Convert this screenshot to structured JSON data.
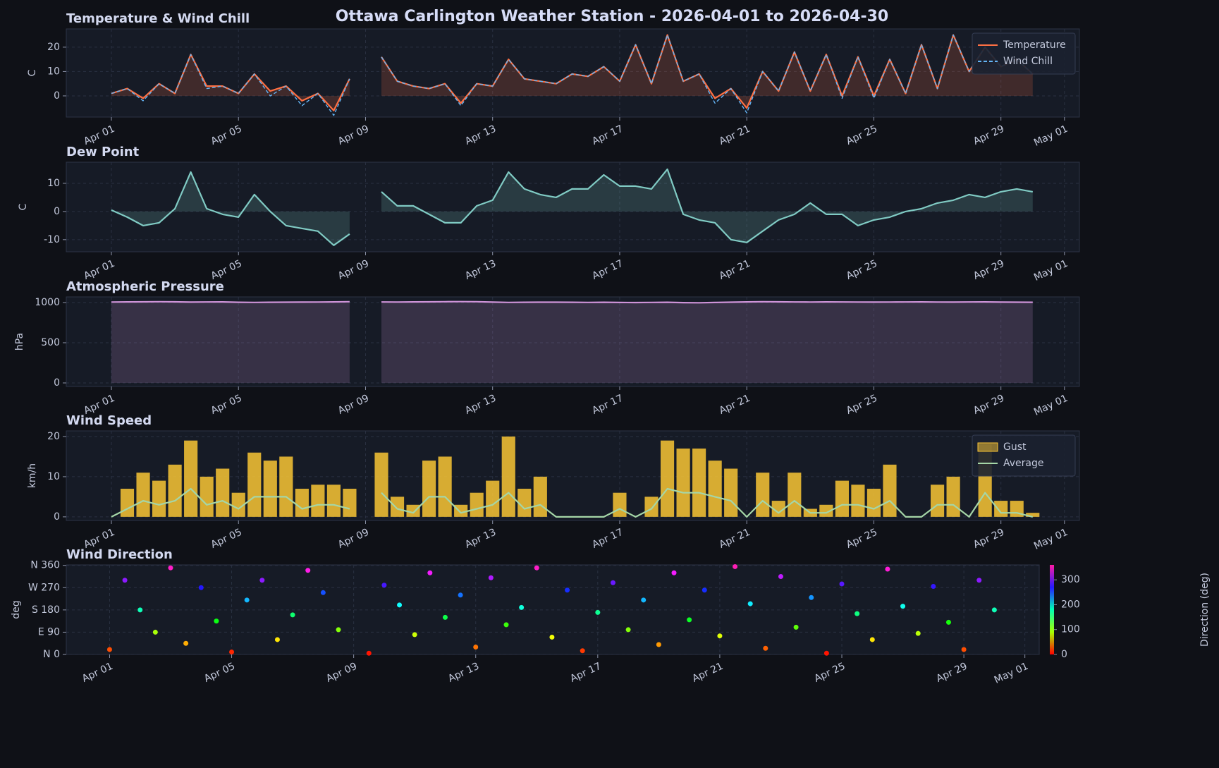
{
  "title": "Ottawa Carlington Weather Station  -  2026-04-01  to  2026-04-30",
  "chart_data": [
    {
      "type": "line",
      "title": "Temperature & Wind Chill",
      "ylabel": "C",
      "x": [
        0,
        0.5,
        1,
        1.5,
        2,
        2.5,
        3,
        3.5,
        4,
        4.5,
        5,
        5.5,
        6,
        6.5,
        7,
        7.5,
        8,
        8.5,
        9,
        9.5,
        10,
        10.5,
        11,
        11.5,
        12,
        12.5,
        13,
        13.5,
        14,
        14.5,
        15,
        15.5,
        16,
        16.5,
        17,
        17.5,
        18,
        18.5,
        19,
        19.5,
        20,
        20.5,
        21,
        21.5,
        22,
        22.5,
        23,
        23.5,
        24,
        24.5,
        25,
        25.5,
        26,
        26.5,
        27,
        27.5,
        28,
        28.5,
        29
      ],
      "series": [
        {
          "name": "Temperature",
          "color": "#ff7043",
          "fill": true,
          "values": [
            1,
            3,
            -1,
            5,
            1,
            17,
            4,
            4,
            1,
            9,
            2,
            4,
            -2,
            1,
            -6,
            7,
            null,
            16,
            6,
            4,
            3,
            5,
            -3,
            5,
            4,
            15,
            7,
            6,
            5,
            9,
            8,
            12,
            6,
            21,
            5,
            25,
            6,
            9,
            -1,
            3,
            -5,
            10,
            2,
            18,
            2,
            17,
            0,
            16,
            0,
            15,
            1,
            21,
            3,
            25,
            10,
            20,
            12,
            15,
            9
          ]
        },
        {
          "name": "Wind Chill",
          "color": "#64b5f6",
          "dash": true,
          "values": [
            1,
            3,
            -2,
            5,
            1,
            17,
            3,
            4,
            1,
            9,
            0,
            4,
            -4,
            1,
            -8,
            7,
            null,
            16,
            6,
            4,
            3,
            5,
            -4,
            5,
            4,
            15,
            7,
            6,
            5,
            9,
            8,
            12,
            6,
            21,
            5,
            25,
            6,
            9,
            -3,
            3,
            -7,
            10,
            2,
            18,
            2,
            17,
            -1,
            16,
            -1,
            15,
            1,
            21,
            3,
            25,
            10,
            20,
            12,
            15,
            9
          ]
        }
      ],
      "xlim": [
        -1.42,
        30.47
      ],
      "xticks": [
        {
          "value": 0,
          "label": "Apr 01"
        },
        {
          "value": 4,
          "label": "Apr 05"
        },
        {
          "value": 8,
          "label": "Apr 09"
        },
        {
          "value": 12,
          "label": "Apr 13"
        },
        {
          "value": 16,
          "label": "Apr 17"
        },
        {
          "value": 20,
          "label": "Apr 21"
        },
        {
          "value": 24,
          "label": "Apr 25"
        },
        {
          "value": 28,
          "label": "Apr 29"
        },
        {
          "value": 30,
          "label": "May 01"
        }
      ],
      "ylim": [
        -8.7,
        27.5
      ],
      "yticks": [
        0,
        10,
        20
      ],
      "grid": true,
      "legend": "upper right"
    },
    {
      "type": "line",
      "title": "Dew Point",
      "ylabel": "C",
      "x": [
        0,
        0.5,
        1,
        1.5,
        2,
        2.5,
        3,
        3.5,
        4,
        4.5,
        5,
        5.5,
        6,
        6.5,
        7,
        7.5,
        8,
        8.5,
        9,
        9.5,
        10,
        10.5,
        11,
        11.5,
        12,
        12.5,
        13,
        13.5,
        14,
        14.5,
        15,
        15.5,
        16,
        16.5,
        17,
        17.5,
        18,
        18.5,
        19,
        19.5,
        20,
        20.5,
        21,
        21.5,
        22,
        22.5,
        23,
        23.5,
        24,
        24.5,
        25,
        25.5,
        26,
        26.5,
        27,
        27.5,
        28,
        28.5,
        29
      ],
      "series": [
        {
          "color": "#80cbc4",
          "fill": true,
          "values": [
            0.5,
            -2,
            -5,
            -4,
            1,
            14,
            1,
            -1,
            -2,
            6,
            0,
            -5,
            -6,
            -7,
            -12,
            -8,
            null,
            7,
            2,
            2,
            -1,
            -4,
            -4,
            2,
            4,
            14,
            8,
            6,
            5,
            8,
            8,
            13,
            9,
            9,
            8,
            15,
            -1,
            -3,
            -4,
            -10,
            -11,
            -7,
            -3,
            -1,
            3,
            -1,
            -1,
            -5,
            -3,
            -2,
            0,
            1,
            3,
            4,
            6,
            5,
            7,
            8,
            7
          ]
        }
      ],
      "xlim": [
        -1.42,
        30.47
      ],
      "xticks": [
        {
          "value": 0,
          "label": "Apr 01"
        },
        {
          "value": 4,
          "label": "Apr 05"
        },
        {
          "value": 8,
          "label": "Apr 09"
        },
        {
          "value": 12,
          "label": "Apr 13"
        },
        {
          "value": 16,
          "label": "Apr 17"
        },
        {
          "value": 20,
          "label": "Apr 21"
        },
        {
          "value": 24,
          "label": "Apr 25"
        },
        {
          "value": 28,
          "label": "Apr 29"
        },
        {
          "value": 30,
          "label": "May 01"
        }
      ],
      "ylim": [
        -14.3,
        17.5
      ],
      "yticks": [
        -10,
        0,
        10
      ],
      "grid": true
    },
    {
      "type": "line",
      "title": "Atmospheric Pressure",
      "ylabel": "hPa",
      "x": [
        0,
        0.5,
        1,
        1.5,
        2,
        2.5,
        3,
        3.5,
        4,
        4.5,
        5,
        5.5,
        6,
        6.5,
        7,
        7.5,
        8,
        8.5,
        9,
        9.5,
        10,
        10.5,
        11,
        11.5,
        12,
        12.5,
        13,
        13.5,
        14,
        14.5,
        15,
        15.5,
        16,
        16.5,
        17,
        17.5,
        18,
        18.5,
        19,
        19.5,
        20,
        20.5,
        21,
        21.5,
        22,
        22.5,
        23,
        23.5,
        24,
        24.5,
        25,
        25.5,
        26,
        26.5,
        27,
        27.5,
        28,
        28.5,
        29
      ],
      "series": [
        {
          "color": "#ce93d8",
          "fill": true,
          "values": [
            1006,
            1008,
            1009,
            1010,
            1009,
            1005,
            1007,
            1008,
            1003,
            1002,
            1003,
            1004,
            1005,
            1006,
            1008,
            1010,
            null,
            1007,
            1006,
            1008,
            1009,
            1010,
            1011,
            1010,
            1005,
            1002,
            1003,
            1004,
            1004,
            1003,
            1002,
            1003,
            1001,
            1000,
            1002,
            1003,
            999,
            997,
            1001,
            1004,
            1008,
            1010,
            1009,
            1007,
            1006,
            1008,
            1007,
            1006,
            1005,
            1006,
            1007,
            1008,
            1006,
            1005,
            1007,
            1008,
            1005,
            1004,
            1003
          ]
        }
      ],
      "xlim": [
        -1.42,
        30.47
      ],
      "xticks": [
        {
          "value": 0,
          "label": "Apr 01"
        },
        {
          "value": 4,
          "label": "Apr 05"
        },
        {
          "value": 8,
          "label": "Apr 09"
        },
        {
          "value": 12,
          "label": "Apr 13"
        },
        {
          "value": 16,
          "label": "Apr 17"
        },
        {
          "value": 20,
          "label": "Apr 21"
        },
        {
          "value": 24,
          "label": "Apr 25"
        },
        {
          "value": 28,
          "label": "Apr 29"
        },
        {
          "value": 30,
          "label": "May 01"
        }
      ],
      "ylim": [
        -44,
        1070
      ],
      "yticks": [
        0,
        500,
        1000
      ],
      "grid": true
    },
    {
      "type": "line",
      "title": "Wind Speed",
      "ylabel": "km/h",
      "x": [
        0,
        0.5,
        1,
        1.5,
        2,
        2.5,
        3,
        3.5,
        4,
        4.5,
        5,
        5.5,
        6,
        6.5,
        7,
        7.5,
        8,
        8.5,
        9,
        9.5,
        10,
        10.5,
        11,
        11.5,
        12,
        12.5,
        13,
        13.5,
        14,
        14.5,
        15,
        15.5,
        16,
        16.5,
        17,
        17.5,
        18,
        18.5,
        19,
        19.5,
        20,
        20.5,
        21,
        21.5,
        22,
        22.5,
        23,
        23.5,
        24,
        24.5,
        25,
        25.5,
        26,
        26.5,
        27,
        27.5,
        28,
        28.5,
        29
      ],
      "series": [
        {
          "name": "Gust",
          "color": "#f9c535",
          "kind": "bar",
          "values": [
            0,
            7,
            11,
            9,
            13,
            19,
            10,
            12,
            6,
            16,
            14,
            15,
            7,
            8,
            8,
            7,
            null,
            16,
            5,
            3,
            14,
            15,
            3,
            6,
            9,
            20,
            7,
            10,
            0,
            0,
            0,
            0,
            6,
            0,
            5,
            19,
            17,
            17,
            14,
            12,
            0,
            11,
            4,
            11,
            2,
            3,
            9,
            8,
            7,
            13,
            0,
            0,
            8,
            10,
            0,
            18,
            4,
            4,
            1
          ]
        },
        {
          "name": "Average",
          "color": "#a5d6a7",
          "values": [
            0,
            2,
            4,
            3,
            4,
            7,
            3,
            4,
            2,
            5,
            5,
            5,
            2,
            3,
            3,
            2,
            null,
            6,
            2,
            1,
            5,
            5,
            1,
            2,
            3,
            6,
            2,
            3,
            0,
            0,
            0,
            0,
            2,
            0,
            2,
            7,
            6,
            6,
            5,
            4,
            0,
            4,
            1,
            4,
            1,
            1,
            3,
            3,
            2,
            4,
            0,
            0,
            3,
            3,
            0,
            6,
            1,
            1,
            0
          ]
        }
      ],
      "xlim": [
        -1.42,
        30.47
      ],
      "xticks": [
        {
          "value": 0,
          "label": "Apr 01"
        },
        {
          "value": 4,
          "label": "Apr 05"
        },
        {
          "value": 8,
          "label": "Apr 09"
        },
        {
          "value": 12,
          "label": "Apr 13"
        },
        {
          "value": 16,
          "label": "Apr 17"
        },
        {
          "value": 20,
          "label": "Apr 21"
        },
        {
          "value": 24,
          "label": "Apr 25"
        },
        {
          "value": 28,
          "label": "Apr 29"
        },
        {
          "value": 30,
          "label": "May 01"
        }
      ],
      "ylim": [
        -0.9,
        21.4
      ],
      "yticks": [
        0,
        10,
        20
      ],
      "grid": true,
      "legend": "upper right"
    },
    {
      "type": "scatter",
      "title": "Wind Direction",
      "ylabel": "deg",
      "x": [
        0,
        0.5,
        1,
        1.5,
        2,
        2.5,
        3,
        3.5,
        4,
        4.5,
        5,
        5.5,
        6,
        6.5,
        7,
        7.5,
        8,
        8.5,
        9,
        9.5,
        10,
        10.5,
        11,
        11.5,
        12,
        12.5,
        13,
        13.5,
        14,
        14.5,
        15,
        15.5,
        16,
        16.5,
        17,
        17.5,
        18,
        18.5,
        19,
        19.5,
        20,
        20.5,
        21,
        21.5,
        22,
        22.5,
        23,
        23.5,
        24,
        24.5,
        25,
        25.5,
        26,
        26.5,
        27,
        27.5,
        28,
        28.5,
        29
      ],
      "values": [
        20,
        300,
        180,
        90,
        350,
        45,
        270,
        135,
        10,
        220,
        300,
        60,
        160,
        340,
        250,
        100,
        null,
        5,
        280,
        200,
        80,
        330,
        150,
        240,
        30,
        310,
        120,
        190,
        350,
        70,
        260,
        15,
        170,
        290,
        100,
        220,
        40,
        330,
        140,
        260,
        75,
        355,
        205,
        25,
        315,
        110,
        230,
        5,
        285,
        165,
        60,
        345,
        195,
        85,
        275,
        130,
        20,
        300,
        180
      ],
      "colormap": "hsv",
      "colorbar": {
        "label": "Direction (deg)",
        "clim": [
          0,
          360
        ],
        "ticks": [
          0,
          100,
          200,
          300
        ]
      },
      "xlim": [
        -1.42,
        30.47
      ],
      "xticks": [
        {
          "value": 0,
          "label": "Apr 01"
        },
        {
          "value": 4,
          "label": "Apr 05"
        },
        {
          "value": 8,
          "label": "Apr 09"
        },
        {
          "value": 12,
          "label": "Apr 13"
        },
        {
          "value": 16,
          "label": "Apr 17"
        },
        {
          "value": 20,
          "label": "Apr 21"
        },
        {
          "value": 24,
          "label": "Apr 25"
        },
        {
          "value": 28,
          "label": "Apr 29"
        },
        {
          "value": 30,
          "label": "May 01"
        }
      ],
      "ylim": [
        0,
        362
      ],
      "yticks": [
        {
          "value": 0,
          "label": "N 0"
        },
        {
          "value": 90,
          "label": "E 90"
        },
        {
          "value": 180,
          "label": "S 180"
        },
        {
          "value": 270,
          "label": "W 270"
        },
        {
          "value": 360,
          "label": "N 360"
        }
      ],
      "grid": true
    }
  ]
}
